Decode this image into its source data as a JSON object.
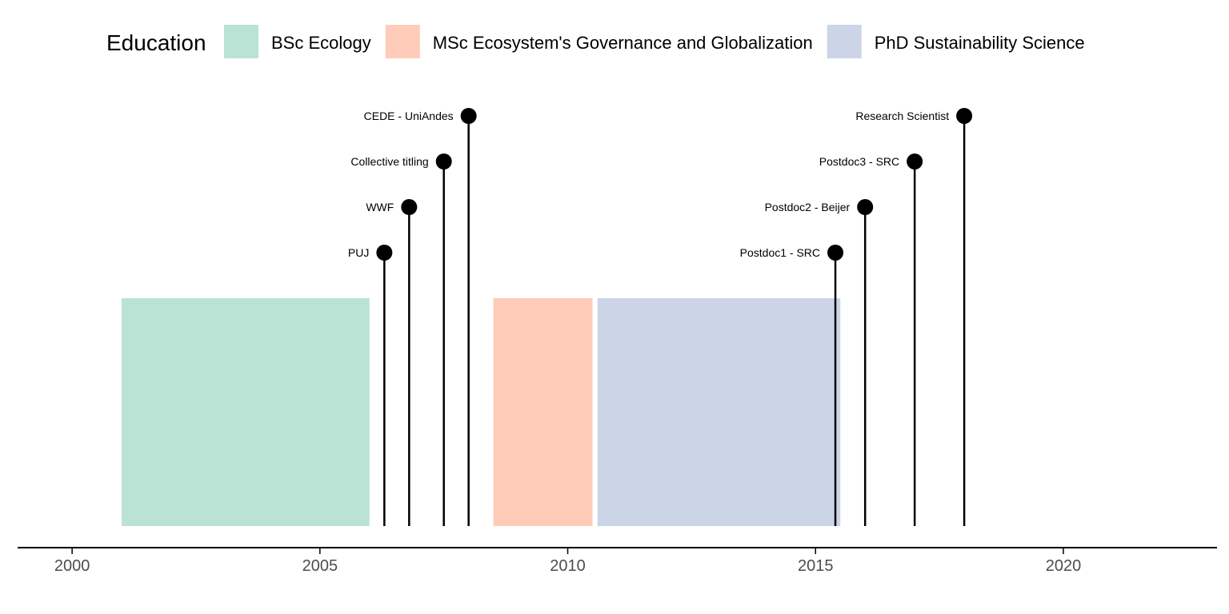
{
  "chart_data": {
    "type": "timeline",
    "legend": {
      "title": "Education",
      "placement": "top"
    },
    "xlim": [
      1998.9,
      2023.1
    ],
    "x_ticks": [
      2000,
      2005,
      2010,
      2015,
      2020
    ],
    "tick_labels": [
      "2000",
      "2005",
      "2010",
      "2015",
      "2020"
    ],
    "grid": false,
    "education": [
      {
        "name": "BSc Ecology",
        "start": 2001.0,
        "end": 2006.0,
        "color": "#66c2a5"
      },
      {
        "name": "MSc Ecosystem's Governance and Globalization",
        "start": 2008.5,
        "end": 2010.5,
        "color": "#fc8d62"
      },
      {
        "name": "PhD Sustainability Science",
        "start": 2010.6,
        "end": 2015.5,
        "color": "#8da0cb"
      }
    ],
    "events": [
      {
        "label": "PUJ",
        "x": 2006.3,
        "level": 1
      },
      {
        "label": "WWF",
        "x": 2006.8,
        "level": 2
      },
      {
        "label": "Collective titling",
        "x": 2007.5,
        "level": 3
      },
      {
        "label": "CEDE - UniAndes",
        "x": 2008.0,
        "level": 4
      },
      {
        "label": "Postdoc1 - SRC",
        "x": 2015.4,
        "level": 1
      },
      {
        "label": "Postdoc2 - Beijer",
        "x": 2016.0,
        "level": 2
      },
      {
        "label": "Postdoc3 - SRC",
        "x": 2017.0,
        "level": 3
      },
      {
        "label": "Research Scientist",
        "x": 2018.0,
        "level": 4
      }
    ]
  }
}
